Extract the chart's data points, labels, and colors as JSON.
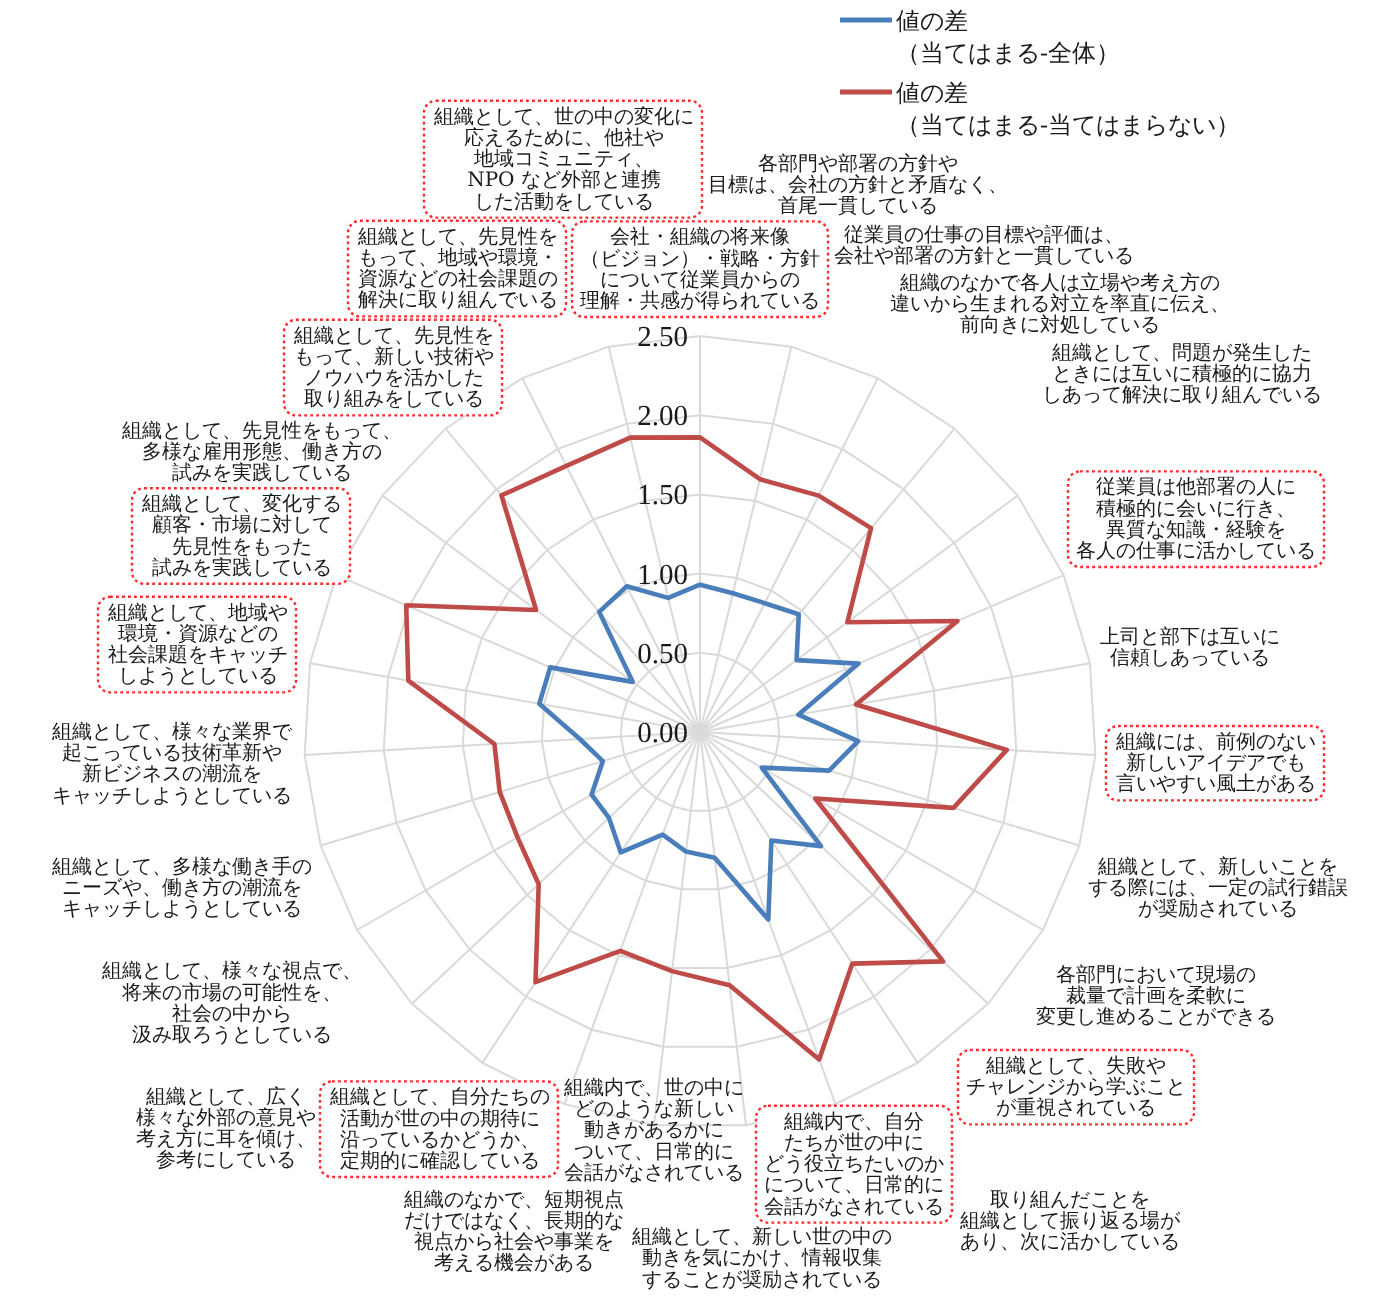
{
  "chart_data": {
    "type": "radar",
    "categories": [
      "会社・組織の将来像（ビジョン）・戦略・方針について従業員からの理解・共感が得られている",
      "各部門や部署の方針や目標は、会社の方針と矛盾なく、首尾一貫している",
      "従業員の仕事の目標や評価は、会社や部署の方針と一貫している",
      "組織のなかで各人は立場や考え方の違いから生まれる対立を率直に伝え、前向きに対処している",
      "組織として、問題が発生したときには互いに積極的に協力しあって解決に取り組んでいる",
      "従業員は他部署の人に積極的に会いに行き、異質な知識・経験を各人の仕事に活かしている",
      "上司と部下は互いに信頼しあっている",
      "組織には、前例のない新しいアイデアでも言いやすい風土がある",
      "組織として、新しいことをする際には、一定の試行錯誤が奨励されている",
      "各部門において現場の裁量で計画を柔軟に変更し進めることができる",
      "組織として、失敗やチャレンジから学ぶことが重視されている",
      "取り組んだことを組織として振り返る場があり、次に活かしている",
      "組織内で、自分たちが世の中にどう役立ちたいのかについて、日常的に会話がなされている",
      "組織として、新しい世の中の動きを気にかけ、情報収集することが奨励されている",
      "組織内で、世の中にどのような新しい動きがあるかについて、日常的に会話がなされている",
      "組織のなかで、短期視点だけではなく、長期的な視点から社会や事業を考える機会がある",
      "組織として、自分たちの活動が世の中の期待に沿っているかどうか、定期的に確認している",
      "組織として、広く様々な外部の意見や考え方に耳を傾け、参考にしている",
      "組織として、様々な視点で、将来の市場の可能性を、社会の中から汲み取ろうとしている",
      "組織として、多様な働き手のニーズや、働き方の潮流をキャッチしようとしている",
      "組織として、様々な業界で起こっている技術革新や新ビジネスの潮流をキャッチしようとしている",
      "組織として、地域や環境・資源などの社会課題をキャッチしようとしている",
      "組織として、変化する顧客・市場に対して先見性をもった試みを実践している",
      "組織として、先見性をもって、多様な雇用形態、働き方の試みを実践している",
      "組織として、先見性をもって、新しい技術やノウハウを活かした取り組みをしている",
      "組織として、先見性をもって、地域や環境・資源などの社会課題の解決に取り組んでいる",
      "組織として、世の中の変化に応えるために、他社や地域コミュニティ、NPO など外部と連携した活動をしている"
    ],
    "series": [
      {
        "name": "値の差（当てはまる-全体）",
        "color": "#4a7ebb",
        "values": [
          0.93,
          0.9,
          0.91,
          0.97,
          0.76,
          1.09,
          0.63,
          1.0,
          0.85,
          0.45,
          1.05,
          0.82,
          1.26,
          0.8,
          0.76,
          0.69,
          0.91,
          0.79,
          0.79,
          0.64,
          0.76,
          1.03,
          1.03,
          0.53,
          0.99,
          1.03,
          0.87
        ]
      },
      {
        "name": "値の差（当てはまる-当てはまらない）",
        "color": "#be4b48",
        "values": [
          1.86,
          1.64,
          1.67,
          1.68,
          1.16,
          1.77,
          1.0,
          1.94,
          1.67,
          0.84,
          2.11,
          1.75,
          2.2,
          1.61,
          1.52,
          1.47,
          1.89,
          1.4,
          1.33,
          1.32,
          1.3,
          1.87,
          2.02,
          1.29,
          1.95,
          1.88,
          1.91
        ]
      }
    ],
    "ylim": [
      0,
      2.5
    ],
    "yticks": [
      {
        "value": 0,
        "label": "0.00"
      },
      {
        "value": 0.5,
        "label": "0.50"
      },
      {
        "value": 1,
        "label": "1.00"
      },
      {
        "value": 1.5,
        "label": "1.50"
      },
      {
        "value": 2,
        "label": "2.00"
      },
      {
        "value": 2.5,
        "label": "2.50"
      }
    ],
    "grid": true,
    "legend": "top right"
  }
}
